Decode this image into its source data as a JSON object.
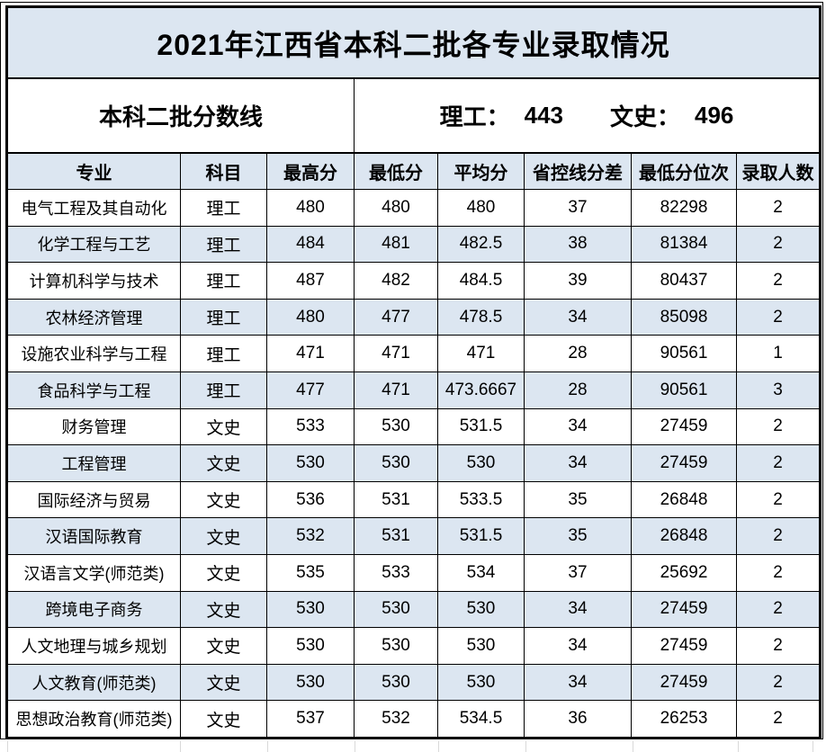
{
  "title": "2021年江西省本科二批各专业录取情况",
  "score_line": {
    "label": "本科二批分数线",
    "items": [
      {
        "label": "理工：",
        "value": "443"
      },
      {
        "label": "文史：",
        "value": "496"
      }
    ]
  },
  "table": {
    "headers": [
      "专业",
      "科目",
      "最高分",
      "最低分",
      "平均分",
      "省控线分差",
      "最低分位次",
      "录取人数"
    ],
    "rows": [
      [
        "电气工程及其自动化",
        "理工",
        "480",
        "480",
        "480",
        "37",
        "82298",
        "2"
      ],
      [
        "化学工程与工艺",
        "理工",
        "484",
        "481",
        "482.5",
        "38",
        "81384",
        "2"
      ],
      [
        "计算机科学与技术",
        "理工",
        "487",
        "482",
        "484.5",
        "39",
        "80437",
        "2"
      ],
      [
        "农林经济管理",
        "理工",
        "480",
        "477",
        "478.5",
        "34",
        "85098",
        "2"
      ],
      [
        "设施农业科学与工程",
        "理工",
        "471",
        "471",
        "471",
        "28",
        "90561",
        "1"
      ],
      [
        "食品科学与工程",
        "理工",
        "477",
        "471",
        "473.6667",
        "28",
        "90561",
        "3"
      ],
      [
        "财务管理",
        "文史",
        "533",
        "530",
        "531.5",
        "34",
        "27459",
        "2"
      ],
      [
        "工程管理",
        "文史",
        "530",
        "530",
        "530",
        "34",
        "27459",
        "2"
      ],
      [
        "国际经济与贸易",
        "文史",
        "536",
        "531",
        "533.5",
        "35",
        "26848",
        "2"
      ],
      [
        "汉语国际教育",
        "文史",
        "532",
        "531",
        "531.5",
        "35",
        "26848",
        "2"
      ],
      [
        "汉语言文学(师范类)",
        "文史",
        "535",
        "533",
        "534",
        "37",
        "25692",
        "2"
      ],
      [
        "跨境电子商务",
        "文史",
        "530",
        "530",
        "530",
        "34",
        "27459",
        "2"
      ],
      [
        "人文地理与城乡规划",
        "文史",
        "530",
        "530",
        "530",
        "34",
        "27459",
        "2"
      ],
      [
        "人文教育(师范类)",
        "文史",
        "530",
        "530",
        "530",
        "34",
        "27459",
        "2"
      ],
      [
        "思想政治教育(师范类)",
        "文史",
        "537",
        "532",
        "534.5",
        "36",
        "26253",
        "2"
      ]
    ]
  },
  "colors": {
    "accent_fill": "#dce6f1",
    "border": "#000000",
    "gridline": "#d9d9d9",
    "row_alt": "#ffffff"
  }
}
